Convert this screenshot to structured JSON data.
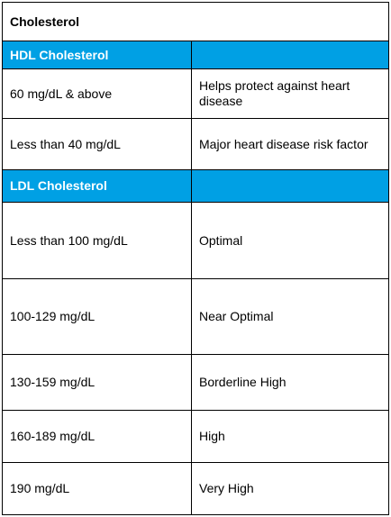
{
  "table": {
    "title": "Cholesterol",
    "sections": [
      {
        "heading": "HDL Cholesterol",
        "rows": [
          {
            "level": "60 mg/dL & above",
            "meaning": "Helps protect against heart disease"
          },
          {
            "level": "Less than 40 mg/dL",
            "meaning": "Major heart disease risk factor"
          }
        ]
      },
      {
        "heading": "LDL Cholesterol",
        "rows": [
          {
            "level": "Less than 100 mg/dL",
            "meaning": "Optimal"
          },
          {
            "level": "100-129 mg/dL",
            "meaning": "Near Optimal"
          },
          {
            "level": "130-159 mg/dL",
            "meaning": "Borderline High"
          },
          {
            "level": "160-189 mg/dL",
            "meaning": "High"
          },
          {
            "level": "190 mg/dL",
            "meaning": "Very High"
          }
        ]
      }
    ],
    "colors": {
      "header_bg": "#00a0e4",
      "header_text": "#ffffff",
      "border": "#000000"
    }
  }
}
